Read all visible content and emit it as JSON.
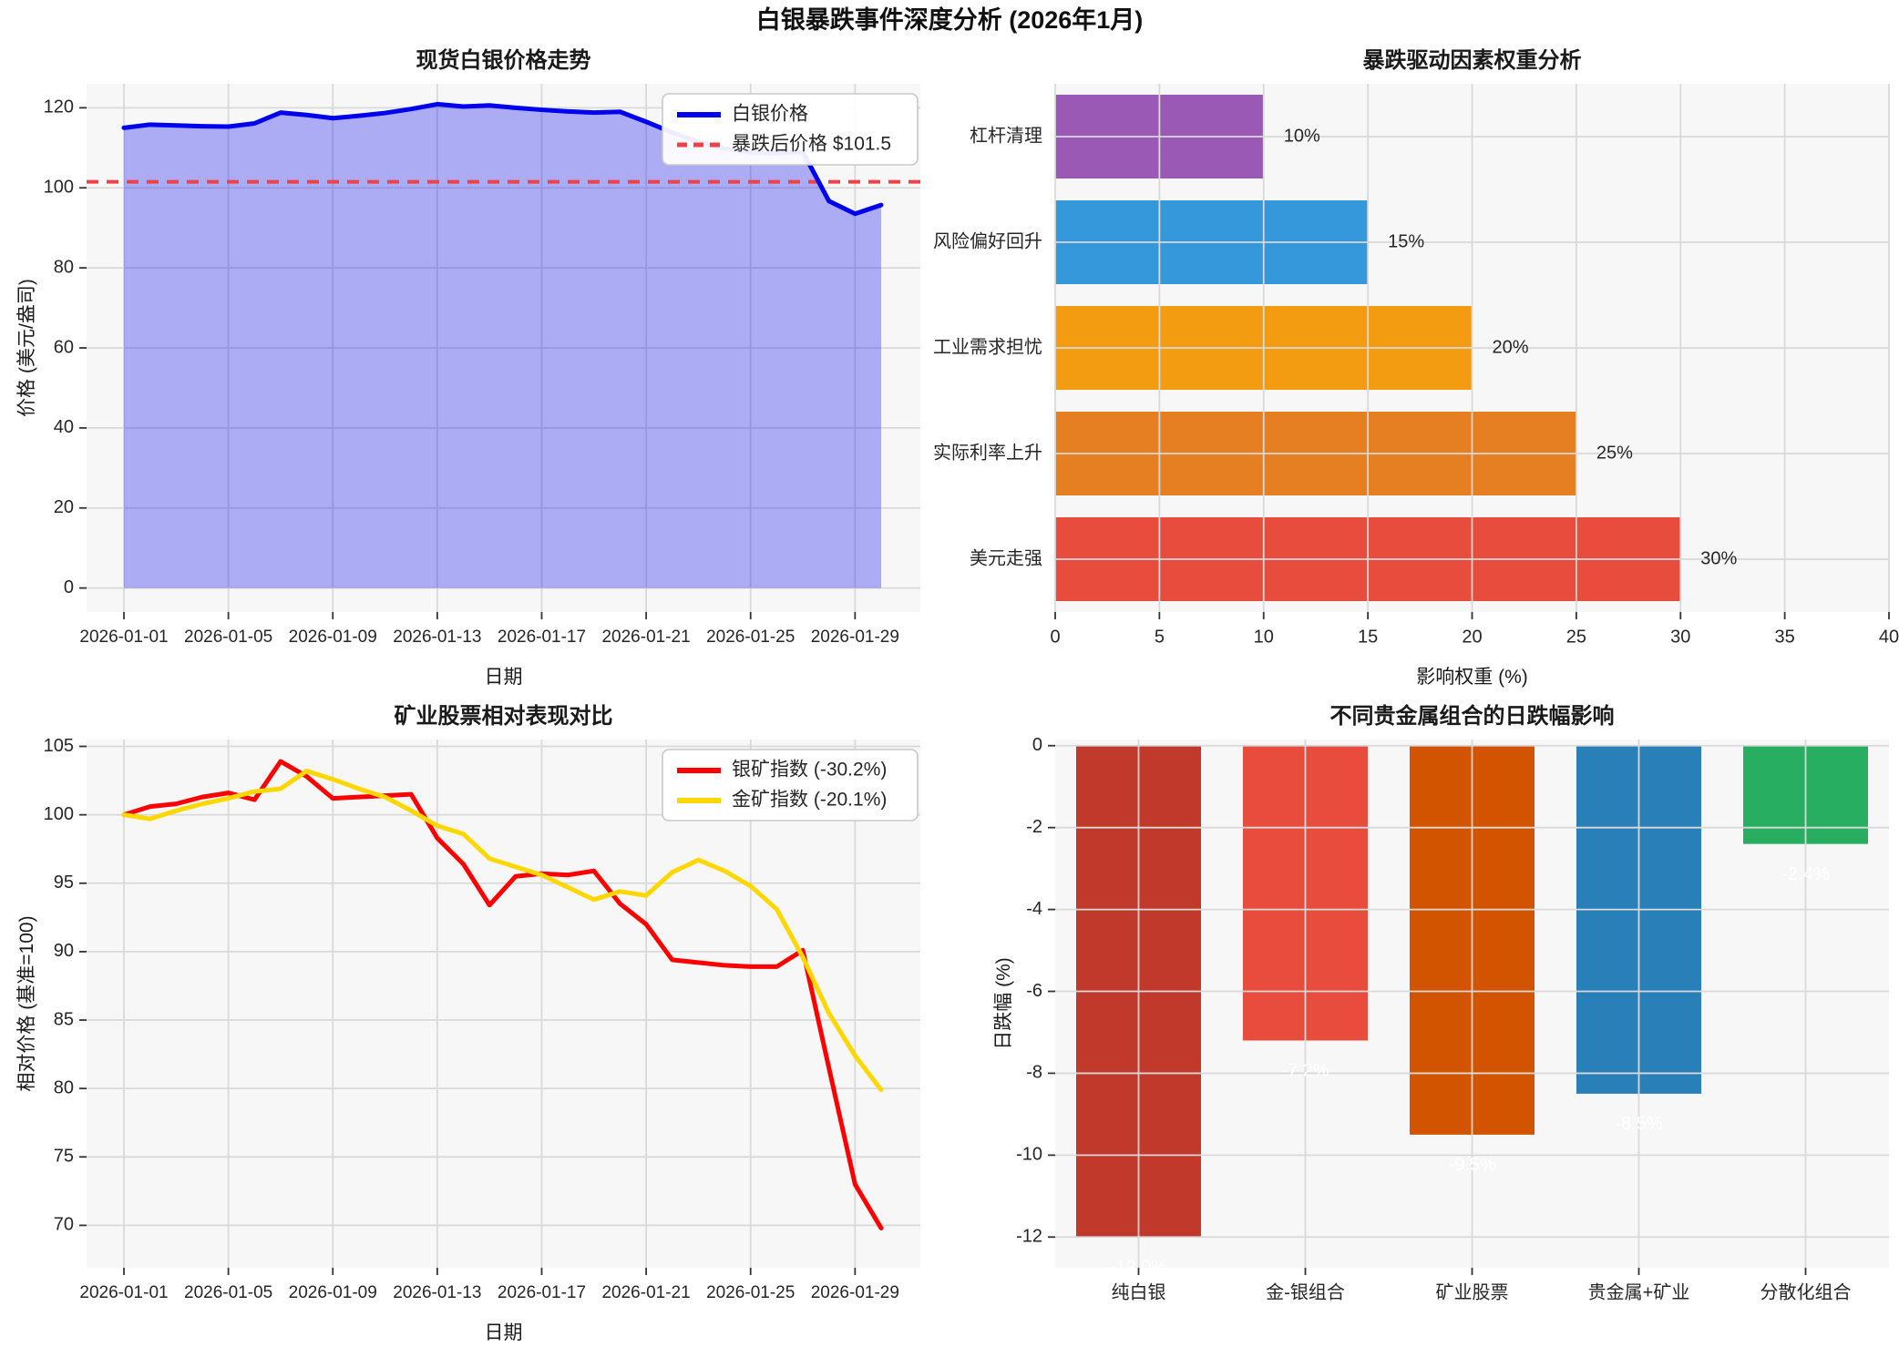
{
  "figure": {
    "title": "白银暴跌事件深度分析 (2026年1月)"
  },
  "chart_data": [
    {
      "id": "silver-price",
      "type": "area",
      "title": "现货白银价格走势",
      "xlabel": "日期",
      "ylabel": "价格 (美元/盎司)",
      "x_tick_labels": [
        "2026-01-01",
        "2026-01-05",
        "2026-01-09",
        "2026-01-13",
        "2026-01-17",
        "2026-01-21",
        "2026-01-25",
        "2026-01-29"
      ],
      "x_tick_days": [
        1,
        5,
        9,
        13,
        17,
        21,
        25,
        29
      ],
      "ylim": [
        -6,
        126
      ],
      "yticks": [
        0,
        20,
        40,
        60,
        80,
        100,
        120
      ],
      "grid": true,
      "legend_position": "upper right",
      "series": [
        {
          "name": "白银价格",
          "color": "#0000ee",
          "values": [
            115.0,
            115.8,
            115.6,
            115.4,
            115.3,
            116.1,
            118.8,
            118.2,
            117.4,
            118.0,
            118.7,
            119.7,
            120.9,
            120.3,
            120.6,
            120.0,
            119.5,
            119.1,
            118.8,
            119.0,
            116.5,
            113.8,
            111.5,
            109.8,
            108.9,
            108.6,
            109.0,
            96.7,
            93.5,
            95.7
          ]
        }
      ],
      "ref_line": {
        "label": "暴跌后价格 $101.5",
        "value": 101.5,
        "color": "#ef4146",
        "style": "dashed"
      }
    },
    {
      "id": "crash-drivers",
      "type": "barh",
      "title": "暴跌驱动因素权重分析",
      "xlabel": "影响权重 (%)",
      "categories": [
        "杠杆清理",
        "风险偏好回升",
        "工业需求担忧",
        "实际利率上升",
        "美元走强"
      ],
      "values": [
        10,
        15,
        20,
        25,
        30
      ],
      "labels": [
        "10%",
        "15%",
        "20%",
        "25%",
        "30%"
      ],
      "colors": [
        "#9b59b6",
        "#3498db",
        "#f39c12",
        "#e67e22",
        "#e74c3c"
      ],
      "xlim": [
        0,
        40
      ],
      "xticks": [
        0,
        5,
        10,
        15,
        20,
        25,
        30,
        35,
        40
      ],
      "grid": true
    },
    {
      "id": "mining-stocks",
      "type": "line",
      "title": "矿业股票相对表现对比",
      "xlabel": "日期",
      "ylabel": "相对价格 (基准=100)",
      "x_tick_labels": [
        "2026-01-01",
        "2026-01-05",
        "2026-01-09",
        "2026-01-13",
        "2026-01-17",
        "2026-01-21",
        "2026-01-25",
        "2026-01-29"
      ],
      "x_tick_days": [
        1,
        5,
        9,
        13,
        17,
        21,
        25,
        29
      ],
      "ylim": [
        66.9,
        105.5
      ],
      "yticks": [
        70,
        75,
        80,
        85,
        90,
        95,
        100,
        105
      ],
      "grid": true,
      "legend_position": "upper right",
      "series": [
        {
          "name": "银矿指数 (-30.2%)",
          "color": "#ff0000",
          "values": [
            100.0,
            100.6,
            100.8,
            101.3,
            101.6,
            101.1,
            103.9,
            102.8,
            101.2,
            101.3,
            101.4,
            101.5,
            98.3,
            96.4,
            93.4,
            95.5,
            95.7,
            95.6,
            95.9,
            93.5,
            92.0,
            89.4,
            89.2,
            89.0,
            88.9,
            88.9,
            90.1,
            81.5,
            73.0,
            69.8
          ]
        },
        {
          "name": "金矿指数 (-20.1%)",
          "color": "#ffd700",
          "values": [
            100.0,
            99.7,
            100.3,
            100.8,
            101.2,
            101.7,
            101.9,
            103.2,
            102.6,
            101.9,
            101.3,
            100.3,
            99.2,
            98.6,
            96.8,
            96.2,
            95.6,
            94.7,
            93.8,
            94.4,
            94.1,
            95.8,
            96.7,
            95.9,
            94.8,
            93.1,
            89.6,
            85.5,
            82.4,
            79.9
          ]
        }
      ]
    },
    {
      "id": "portfolio-impact",
      "type": "bar",
      "title": "不同贵金属组合的日跌幅影响",
      "ylabel": "日跌幅 (%)",
      "categories": [
        "纯白银",
        "金-银组合",
        "矿业股票",
        "贵金属+矿业",
        "分散化组合"
      ],
      "values": [
        -12.0,
        -7.2,
        -9.5,
        -8.5,
        -2.4
      ],
      "labels": [
        "-12.0%",
        "-7.2%",
        "-9.5%",
        "-8.5%",
        "-2.4%"
      ],
      "colors": [
        "#c0392b",
        "#e74c3c",
        "#d35400",
        "#2980b9",
        "#27ae60"
      ],
      "ylim": [
        -12.75,
        0.15
      ],
      "yticks": [
        0,
        -2,
        -4,
        -6,
        -8,
        -10,
        -12
      ],
      "grid": true
    }
  ]
}
